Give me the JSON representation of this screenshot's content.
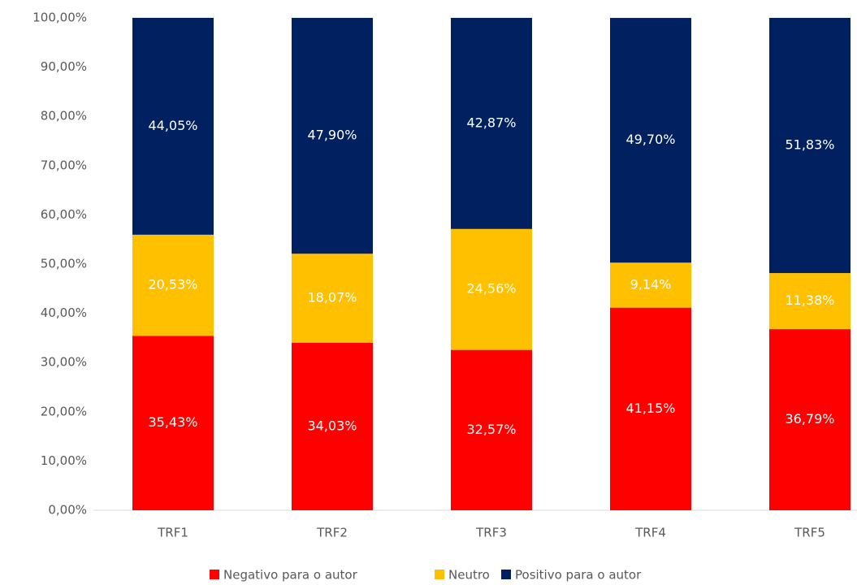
{
  "chart_data": {
    "type": "stacked_bar",
    "categories": [
      "TRF1",
      "TRF2",
      "TRF3",
      "TRF4",
      "TRF5"
    ],
    "series": [
      {
        "name": "Negativo para o autor",
        "color": "#ff0000",
        "values": [
          35.43,
          34.03,
          32.57,
          41.15,
          36.79
        ],
        "value_labels": [
          "35,43%",
          "34,03%",
          "32,57%",
          "41,15%",
          "36,79%"
        ]
      },
      {
        "name": "Neutro",
        "color": "#ffc000",
        "values": [
          20.53,
          18.07,
          24.56,
          9.14,
          11.38
        ],
        "value_labels": [
          "20,53%",
          "18,07%",
          "24,56%",
          "9,14%",
          "11,38%"
        ]
      },
      {
        "name": "Positivo para o autor",
        "color": "#002060",
        "values": [
          44.05,
          47.9,
          42.87,
          49.7,
          51.83
        ],
        "value_labels": [
          "44,05%",
          "47,90%",
          "42,87%",
          "49,70%",
          "51,83%"
        ]
      }
    ],
    "ylim": [
      0,
      100
    ],
    "yticks": [
      {
        "value": 0,
        "label": "0,00%"
      },
      {
        "value": 10,
        "label": "10,00%"
      },
      {
        "value": 20,
        "label": "20,00%"
      },
      {
        "value": 30,
        "label": "30,00%"
      },
      {
        "value": 40,
        "label": "40,00%"
      },
      {
        "value": 50,
        "label": "50,00%"
      },
      {
        "value": 60,
        "label": "60,00%"
      },
      {
        "value": 70,
        "label": "70,00%"
      },
      {
        "value": 80,
        "label": "80,00%"
      },
      {
        "value": 90,
        "label": "90,00%"
      },
      {
        "value": 100,
        "label": "100,00%"
      }
    ],
    "legend": "bottom"
  }
}
